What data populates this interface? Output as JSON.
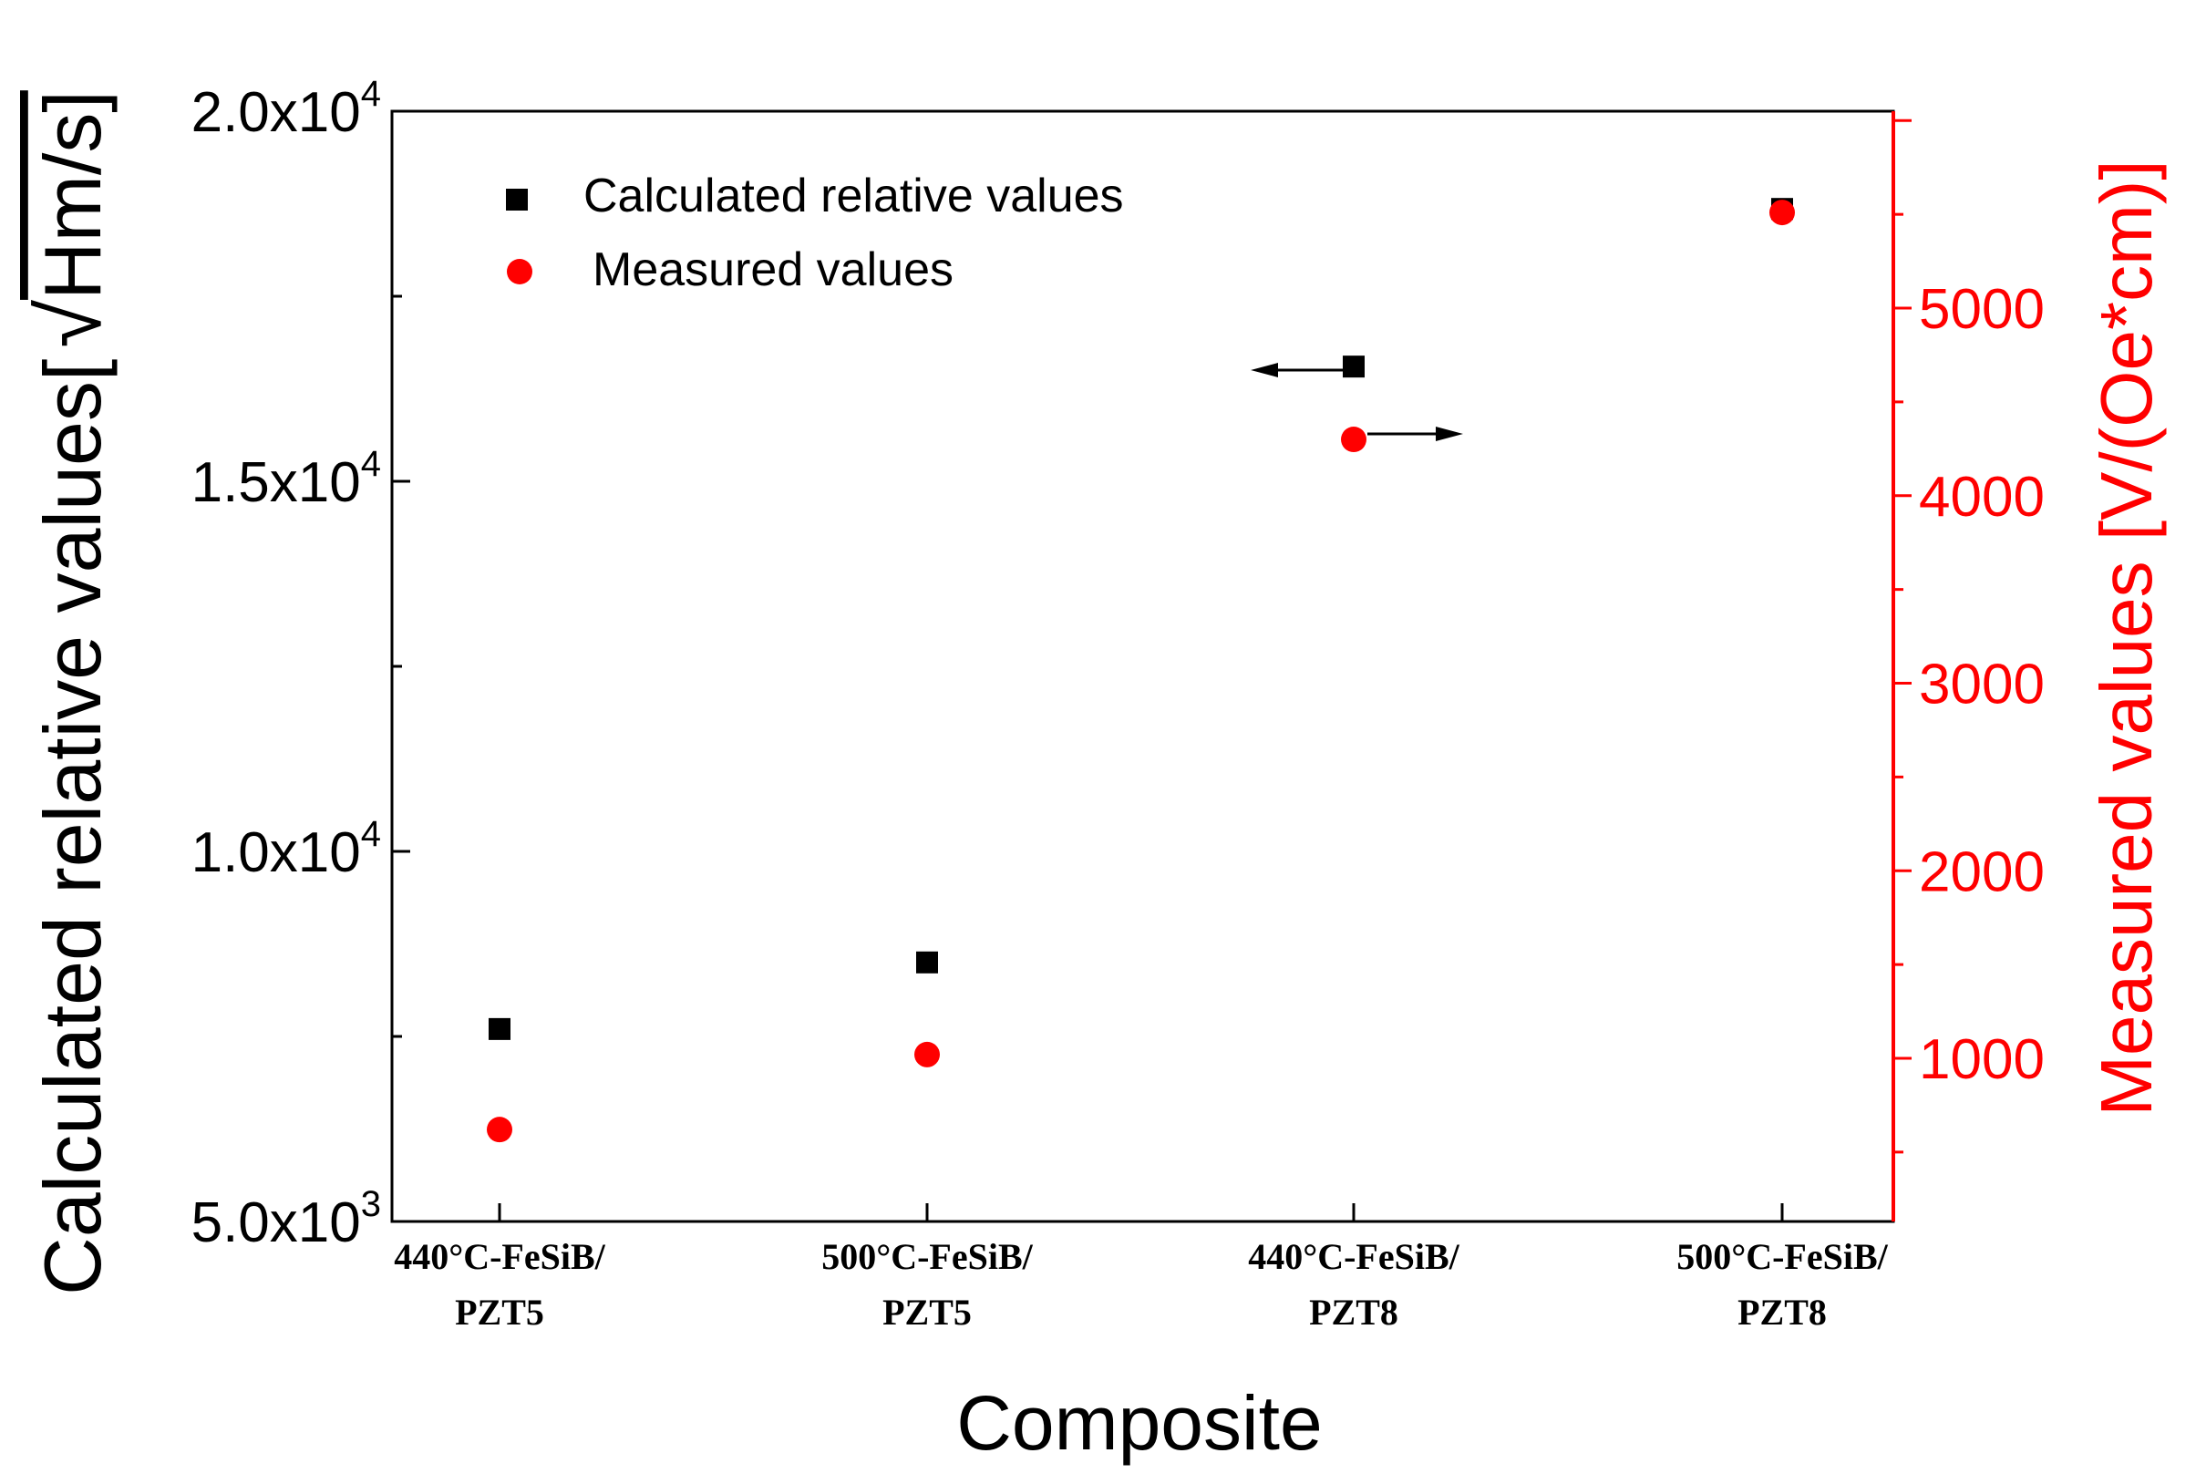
{
  "chart_data": {
    "type": "scatter",
    "title": "",
    "xlabel": "Composite",
    "categories": [
      "440°C-FeSiB/ PZT5",
      "500°C-FeSiB/ PZT5",
      "440°C-FeSiB/ PZT8",
      "500°C-FeSiB/ PZT8"
    ],
    "category_lines": [
      [
        "440°C-FeSiB/",
        "PZT5"
      ],
      [
        "500°C-FeSiB/",
        "PZT5"
      ],
      [
        "440°C-FeSiB/",
        "PZT8"
      ],
      [
        "500°C-FeSiB/",
        "PZT8"
      ]
    ],
    "left_axis": {
      "label": "Calculated relative values[√Hm/s]",
      "label_main": "Calculated relative values[",
      "label_radicand": "Hm/s]",
      "ylim": [
        5000,
        20000
      ],
      "ticks": [
        5000,
        10000,
        15000,
        20000
      ],
      "tick_labels": [
        {
          "mant": "5.0x10",
          "exp": "3"
        },
        {
          "mant": "1.0x10",
          "exp": "4"
        },
        {
          "mant": "1.5x10",
          "exp": "4"
        },
        {
          "mant": "2.0x10",
          "exp": "4"
        }
      ],
      "color": "#000000"
    },
    "right_axis": {
      "label": "Measured values [V/(Oe*cm)]",
      "ylim": [
        130,
        6050
      ],
      "ticks": [
        1000,
        2000,
        3000,
        4000,
        5000
      ],
      "tick_labels": [
        "1000",
        "2000",
        "3000",
        "4000",
        "5000"
      ],
      "color": "#ff0000"
    },
    "series": [
      {
        "name": "Calculated relative values",
        "axis": "left",
        "marker": "square",
        "color": "#000000",
        "values": [
          7600,
          8500,
          16550,
          18680
        ]
      },
      {
        "name": "Measured values",
        "axis": "right",
        "marker": "circle",
        "color": "#ff0000",
        "values": [
          620,
          1020,
          4300,
          5510
        ]
      }
    ],
    "legend": {
      "position": "top-left",
      "entries": [
        "Calculated relative values",
        "Measured values"
      ]
    }
  }
}
